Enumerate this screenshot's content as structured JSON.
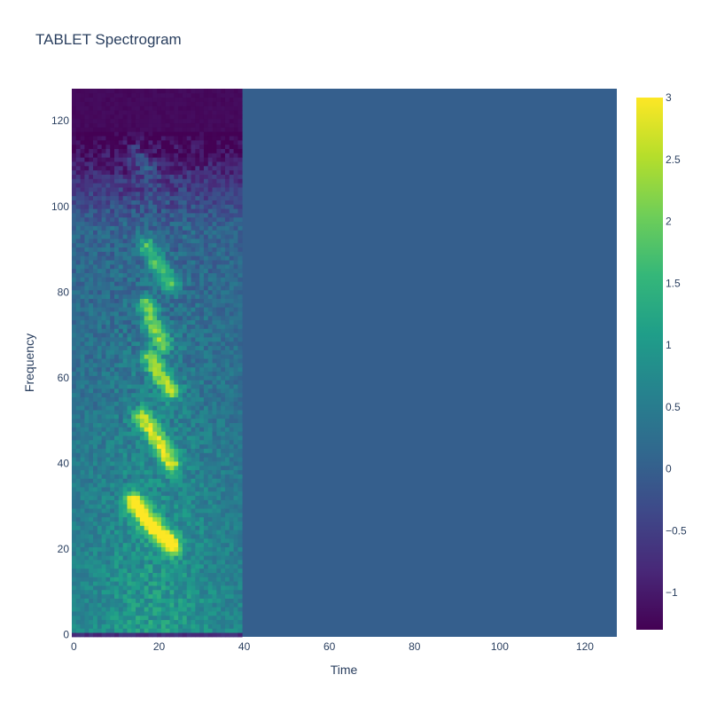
{
  "chart_data": {
    "type": "heatmap",
    "title": "TABLET Spectrogram",
    "xlabel": "Time",
    "ylabel": "Frequency",
    "xlim": [
      0,
      127
    ],
    "ylim": [
      0,
      127
    ],
    "x_ticks": [
      0,
      20,
      40,
      60,
      80,
      100,
      120
    ],
    "y_ticks": [
      0,
      20,
      40,
      60,
      80,
      100,
      120
    ],
    "grid": "off",
    "colorscale": "Viridis",
    "colorbar": {
      "range": [
        -1.3,
        3
      ],
      "ticks": [
        -1,
        -0.5,
        0,
        0.5,
        1,
        1.5,
        2,
        2.5,
        3
      ],
      "tick_labels": [
        "−1",
        "−0.5",
        "0",
        "0.5",
        "1",
        "1.5",
        "2",
        "2.5",
        "3"
      ]
    },
    "signal_extent_time": [
      0,
      39
    ],
    "padding_value": 0,
    "quiet_high_band_value": -1.25,
    "background_level": 0.35,
    "formant_ridges": [
      {
        "t": [
          14,
          17,
          20,
          23
        ],
        "f": [
          31,
          27,
          24,
          21
        ],
        "peak": 3.0
      },
      {
        "t": [
          16,
          20,
          23
        ],
        "f": [
          51,
          45,
          40
        ],
        "peak": 2.2
      },
      {
        "t": [
          18,
          20,
          23
        ],
        "f": [
          65,
          61,
          57
        ],
        "peak": 2.0
      },
      {
        "t": [
          17,
          19,
          21
        ],
        "f": [
          77,
          71,
          68
        ],
        "peak": 1.8
      },
      {
        "t": [
          17,
          20,
          23
        ],
        "f": [
          91,
          86,
          82
        ],
        "peak": 1.5
      },
      {
        "t": [
          14,
          18
        ],
        "f": [
          113,
          108
        ],
        "peak": 0.7
      }
    ]
  },
  "colors": {
    "viridis": [
      "#440154",
      "#482878",
      "#3e4989",
      "#31688e",
      "#26828e",
      "#1f9e89",
      "#35b779",
      "#6ece58",
      "#b5de2b",
      "#fde725"
    ]
  }
}
